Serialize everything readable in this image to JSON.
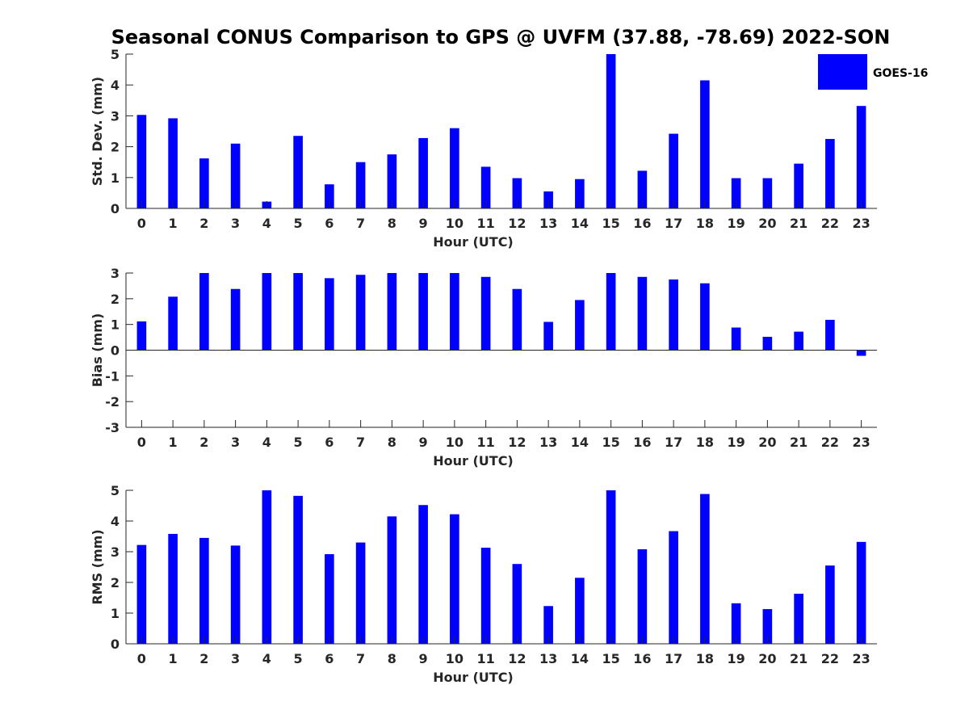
{
  "chart_data": {
    "title": "Seasonal CONUS Comparison to GPS @ UVFM (37.88, -78.69) 2022-SON",
    "legend": {
      "label": "GOES-16",
      "placement": "top-right"
    },
    "series_color": "#0000ff",
    "axis_color": "#262626",
    "subplots": [
      {
        "type": "bar",
        "name": "std-dev",
        "ylabel": "Std. Dev. (mm)",
        "xlabel": "Hour (UTC)",
        "ylim": [
          0,
          5
        ],
        "yticks": [
          "0",
          "1",
          "2",
          "3",
          "4",
          "5"
        ],
        "categories": [
          "0",
          "1",
          "2",
          "3",
          "4",
          "5",
          "6",
          "7",
          "8",
          "9",
          "10",
          "11",
          "12",
          "13",
          "14",
          "15",
          "16",
          "17",
          "18",
          "19",
          "20",
          "21",
          "22",
          "23"
        ],
        "values": [
          3.03,
          2.92,
          1.62,
          2.1,
          0.22,
          2.35,
          0.78,
          1.5,
          1.75,
          2.28,
          2.6,
          1.35,
          0.98,
          0.55,
          0.95,
          5.0,
          1.22,
          2.42,
          4.15,
          0.98,
          0.98,
          1.45,
          2.25,
          3.32
        ],
        "baseline": 0
      },
      {
        "type": "bar",
        "name": "bias",
        "ylabel": "Bias (mm)",
        "xlabel": "Hour (UTC)",
        "ylim": [
          -3,
          3
        ],
        "yticks": [
          "-3",
          "-2",
          "-1",
          "0",
          "1",
          "2",
          "3"
        ],
        "categories": [
          "0",
          "1",
          "2",
          "3",
          "4",
          "5",
          "6",
          "7",
          "8",
          "9",
          "10",
          "11",
          "12",
          "13",
          "14",
          "15",
          "16",
          "17",
          "18",
          "19",
          "20",
          "21",
          "22",
          "23"
        ],
        "values": [
          1.12,
          2.08,
          3.0,
          2.38,
          3.0,
          3.0,
          2.8,
          2.93,
          3.0,
          3.0,
          3.0,
          2.85,
          2.38,
          1.1,
          1.95,
          3.0,
          2.85,
          2.75,
          2.6,
          0.88,
          0.52,
          0.72,
          1.18,
          -0.22
        ],
        "baseline": 0
      },
      {
        "type": "bar",
        "name": "rms",
        "ylabel": "RMS (mm)",
        "xlabel": "Hour (UTC)",
        "ylim": [
          0,
          5
        ],
        "yticks": [
          "0",
          "1",
          "2",
          "3",
          "4",
          "5"
        ],
        "categories": [
          "0",
          "1",
          "2",
          "3",
          "4",
          "5",
          "6",
          "7",
          "8",
          "9",
          "10",
          "11",
          "12",
          "13",
          "14",
          "15",
          "16",
          "17",
          "18",
          "19",
          "20",
          "21",
          "22",
          "23"
        ],
        "values": [
          3.22,
          3.58,
          3.45,
          3.2,
          5.0,
          4.82,
          2.92,
          3.3,
          4.15,
          4.52,
          4.22,
          3.13,
          2.6,
          1.23,
          2.15,
          5.0,
          3.08,
          3.67,
          4.88,
          1.32,
          1.13,
          1.63,
          2.55,
          3.32
        ],
        "baseline": 0
      }
    ]
  }
}
